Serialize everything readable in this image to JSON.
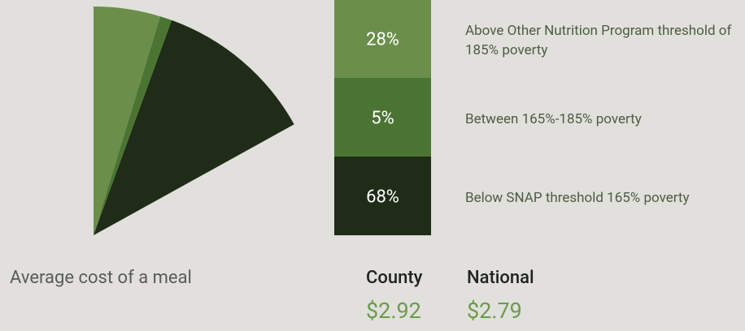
{
  "chart_data": {
    "type": "pie",
    "categories": [
      "Above Other Nutrition Program threshold of 185% poverty",
      "Between 165%-185%  poverty",
      "Below SNAP threshold 165% poverty"
    ],
    "values": [
      28,
      5,
      68
    ],
    "value_labels": [
      "28%",
      "5%",
      "68%"
    ],
    "colors": [
      "#6b8f4b",
      "#4b7433",
      "#1f2c17"
    ],
    "meal_cost": {
      "title": "Average cost of a meal",
      "items": [
        {
          "name": "County",
          "price": "$2.92"
        },
        {
          "name": "National",
          "price": "$2.79"
        }
      ]
    }
  }
}
